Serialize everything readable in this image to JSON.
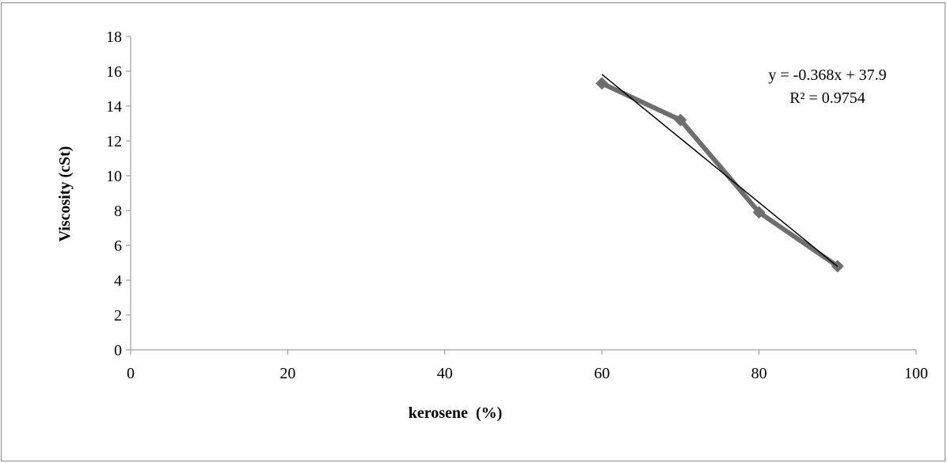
{
  "chart_data": {
    "type": "scatter",
    "title": "",
    "xlabel": "kerosene  (%)",
    "ylabel": "Viscosity (cSt)",
    "xlim": [
      0,
      100
    ],
    "ylim": [
      0,
      18
    ],
    "x_ticks": [
      0,
      20,
      40,
      60,
      80,
      100
    ],
    "y_ticks": [
      0,
      2,
      4,
      6,
      8,
      10,
      12,
      14,
      16,
      18
    ],
    "grid": false,
    "legend": "none",
    "series": [
      {
        "x": [
          60,
          70,
          80,
          90
        ],
        "values": [
          15.3,
          13.2,
          7.9,
          4.8
        ],
        "marker": "diamond",
        "line": true,
        "color": "#6e6e6e"
      }
    ],
    "trendline": {
      "type": "linear",
      "slope": -0.368,
      "intercept": 37.9,
      "x_range": [
        60,
        90
      ],
      "color": "#000000"
    },
    "annotations": {
      "equation": "y = -0.368x + 37.9",
      "r_squared": "R² = 0.9754"
    }
  }
}
